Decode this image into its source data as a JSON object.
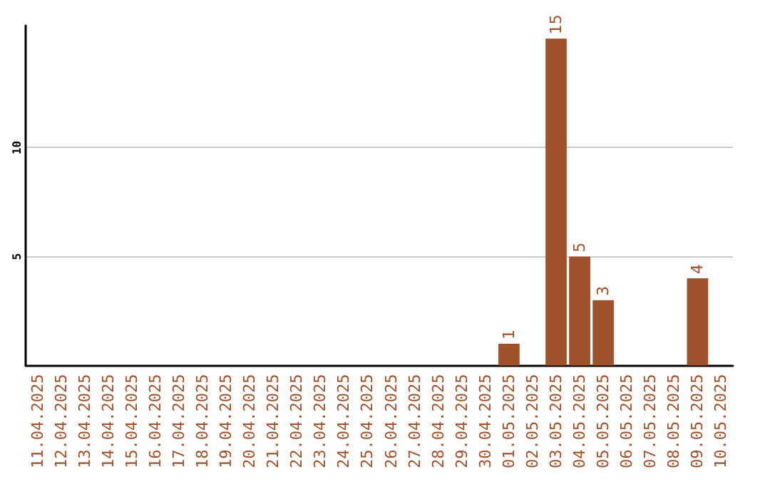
{
  "chart_data": {
    "type": "bar",
    "categories": [
      "11.04.2025",
      "12.04.2025",
      "13.04.2025",
      "14.04.2025",
      "15.04.2025",
      "16.04.2025",
      "17.04.2025",
      "18.04.2025",
      "19.04.2025",
      "20.04.2025",
      "21.04.2025",
      "22.04.2025",
      "23.04.2025",
      "24.04.2025",
      "25.04.2025",
      "26.04.2025",
      "27.04.2025",
      "28.04.2025",
      "29.04.2025",
      "30.04.2025",
      "01.05.2025",
      "02.05.2025",
      "03.05.2025",
      "04.05.2025",
      "05.05.2025",
      "06.05.2025",
      "07.05.2025",
      "08.05.2025",
      "09.05.2025",
      "10.05.2025"
    ],
    "values": [
      0,
      0,
      0,
      0,
      0,
      0,
      0,
      0,
      0,
      0,
      0,
      0,
      0,
      0,
      0,
      0,
      0,
      0,
      0,
      0,
      1,
      0,
      15,
      5,
      3,
      0,
      0,
      0,
      4,
      0
    ],
    "value_labels": [
      null,
      null,
      null,
      null,
      null,
      null,
      null,
      null,
      null,
      null,
      null,
      null,
      null,
      null,
      null,
      null,
      null,
      null,
      null,
      null,
      "1",
      null,
      "15",
      "5",
      "3",
      null,
      null,
      null,
      "4",
      null
    ],
    "color": "#a0522d",
    "ylim": [
      0,
      15.6
    ],
    "yticks": [
      5,
      10
    ],
    "grid": "y"
  }
}
